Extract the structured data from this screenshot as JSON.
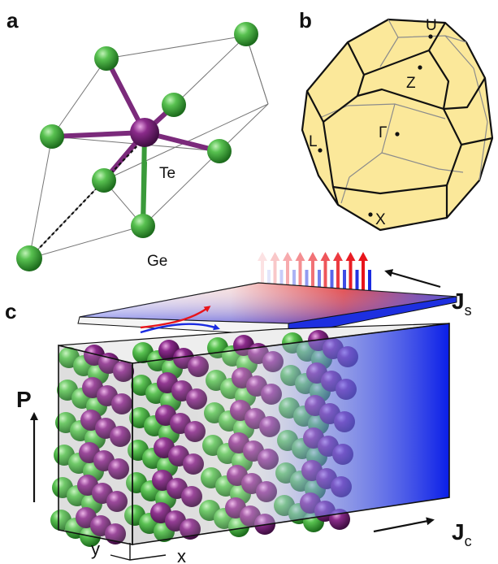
{
  "panels": {
    "a": {
      "letter": "a",
      "atom_te": "Te",
      "atom_ge": "Ge"
    },
    "b": {
      "letter": "b",
      "points": [
        "U",
        "Z",
        "Γ",
        "L",
        "X"
      ]
    },
    "c": {
      "letter": "c",
      "polarization": "P",
      "spin_current": {
        "main": "J",
        "sub": "s"
      },
      "charge_current": {
        "main": "J",
        "sub": "c"
      },
      "axis_y": "y",
      "axis_x": "x"
    }
  },
  "colors": {
    "ge_green": "#3fae3f",
    "te_purple": "#7a1f7a",
    "bz_fill": "#fbe89a",
    "spin_red": "#e8141b",
    "spin_blue": "#1a2be0",
    "bond_purple": "#7b2a7b"
  }
}
